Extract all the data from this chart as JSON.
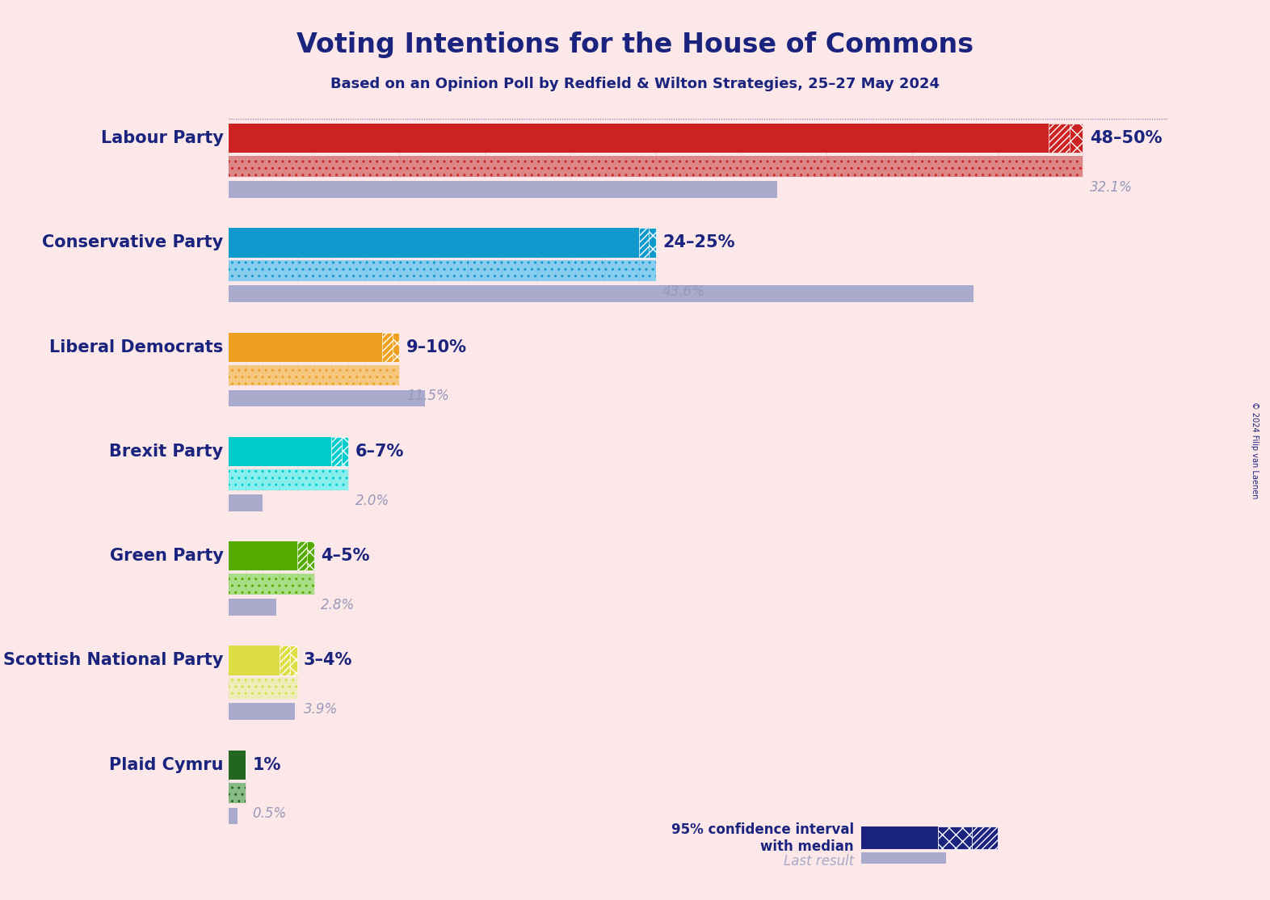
{
  "title": "Voting Intentions for the House of Commons",
  "subtitle": "Based on an Opinion Poll by Redfield & Wilton Strategies, 25–27 May 2024",
  "background_color": "#fce8e8",
  "title_color": "#1a237e",
  "parties": [
    "Labour Party",
    "Conservative Party",
    "Liberal Democrats",
    "Brexit Party",
    "Green Party",
    "Scottish National Party",
    "Plaid Cymru"
  ],
  "ci_low": [
    48,
    24,
    9,
    6,
    4,
    3,
    1
  ],
  "ci_high": [
    50,
    25,
    10,
    7,
    5,
    4,
    1
  ],
  "median": [
    49,
    24.5,
    9.5,
    6.5,
    4.5,
    3.5,
    1
  ],
  "last_result": [
    32.1,
    43.6,
    11.5,
    2.0,
    2.8,
    3.9,
    0.5
  ],
  "label_range": [
    "48–50%",
    "24–25%",
    "9–10%",
    "6–7%",
    "4–5%",
    "3–4%",
    "1%"
  ],
  "label_last": [
    "32.1%",
    "43.6%",
    "11.5%",
    "2.0%",
    "2.8%",
    "3.9%",
    "0.5%"
  ],
  "bar_colors": [
    "#cc2222",
    "#1099cc",
    "#f0a020",
    "#00cccc",
    "#55aa00",
    "#dddd44",
    "#226622"
  ],
  "bar_colors_light": [
    "#dd8888",
    "#88ccee",
    "#f5c880",
    "#88eeee",
    "#aadd88",
    "#eeeebb",
    "#88bb88"
  ],
  "last_result_color": "#aaaacc",
  "ci_color": "#1a237e",
  "xlim": [
    0,
    55
  ],
  "copyright": "© 2024 Filip van Laenen"
}
